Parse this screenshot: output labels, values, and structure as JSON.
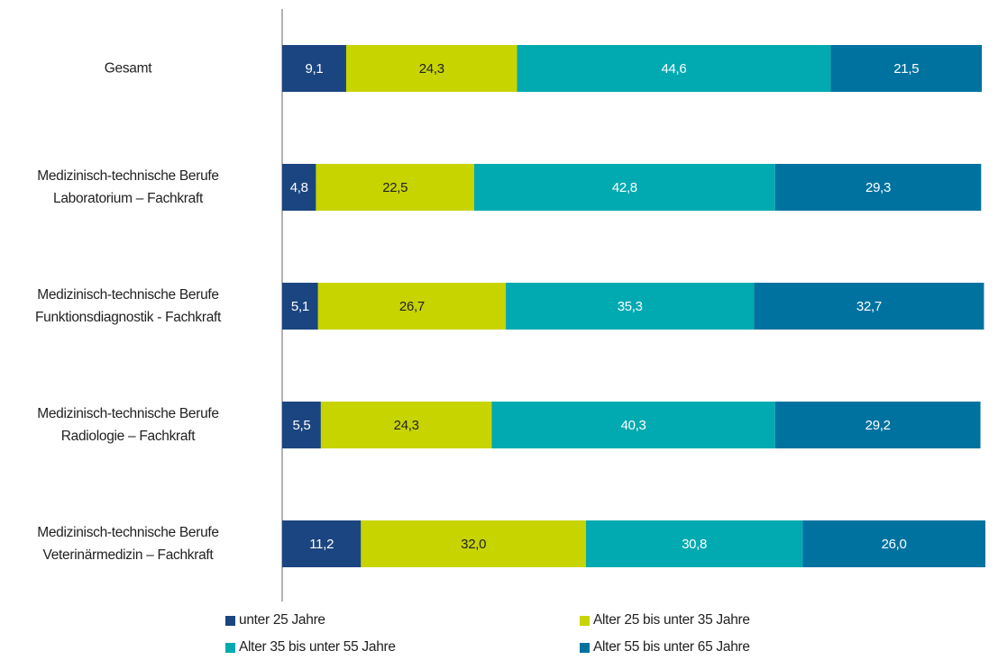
{
  "chart_data": {
    "type": "stacked_barh",
    "categories": [
      "Gesamt",
      "Medizinisch-technische Berufe\nLaboratorium – Fachkraft",
      "Medizinisch-technische Berufe\nFunktionsdiagnostik - Fachkraft",
      "Medizinisch-technische Berufe\nRadiologie – Fachkraft",
      "Medizinisch-technische Berufe\nVeterinärmedizin – Fachkraft"
    ],
    "series": [
      {
        "name": "unter 25 Jahre",
        "color": "#1b4580",
        "text_color": "#ffffff",
        "values": [
          9.1,
          4.8,
          5.1,
          5.5,
          11.2
        ],
        "value_labels": [
          "9,1",
          "4,8",
          "5,1",
          "5,5",
          "11,2"
        ]
      },
      {
        "name": "Alter 25 bis unter 35 Jahre",
        "color": "#c8d400",
        "text_color": "#222222",
        "values": [
          24.3,
          22.5,
          26.7,
          24.3,
          32.0
        ],
        "value_labels": [
          "24,3",
          "22,5",
          "26,7",
          "24,3",
          "32,0"
        ]
      },
      {
        "name": "Alter 35 bis unter 55 Jahre",
        "color": "#00aab0",
        "text_color": "#ffffff",
        "values": [
          44.6,
          42.8,
          35.3,
          40.3,
          30.8
        ],
        "value_labels": [
          "44,6",
          "42,8",
          "35,3",
          "40,3",
          "30,8"
        ]
      },
      {
        "name": "Alter 55 bis unter 65 Jahre",
        "color": "#0072a0",
        "text_color": "#ffffff",
        "values": [
          21.5,
          29.3,
          32.7,
          29.2,
          26.0
        ],
        "value_labels": [
          "21,5",
          "29,3",
          "32,7",
          "29,2",
          "26,0"
        ]
      }
    ],
    "xlim": [
      0,
      100
    ]
  }
}
